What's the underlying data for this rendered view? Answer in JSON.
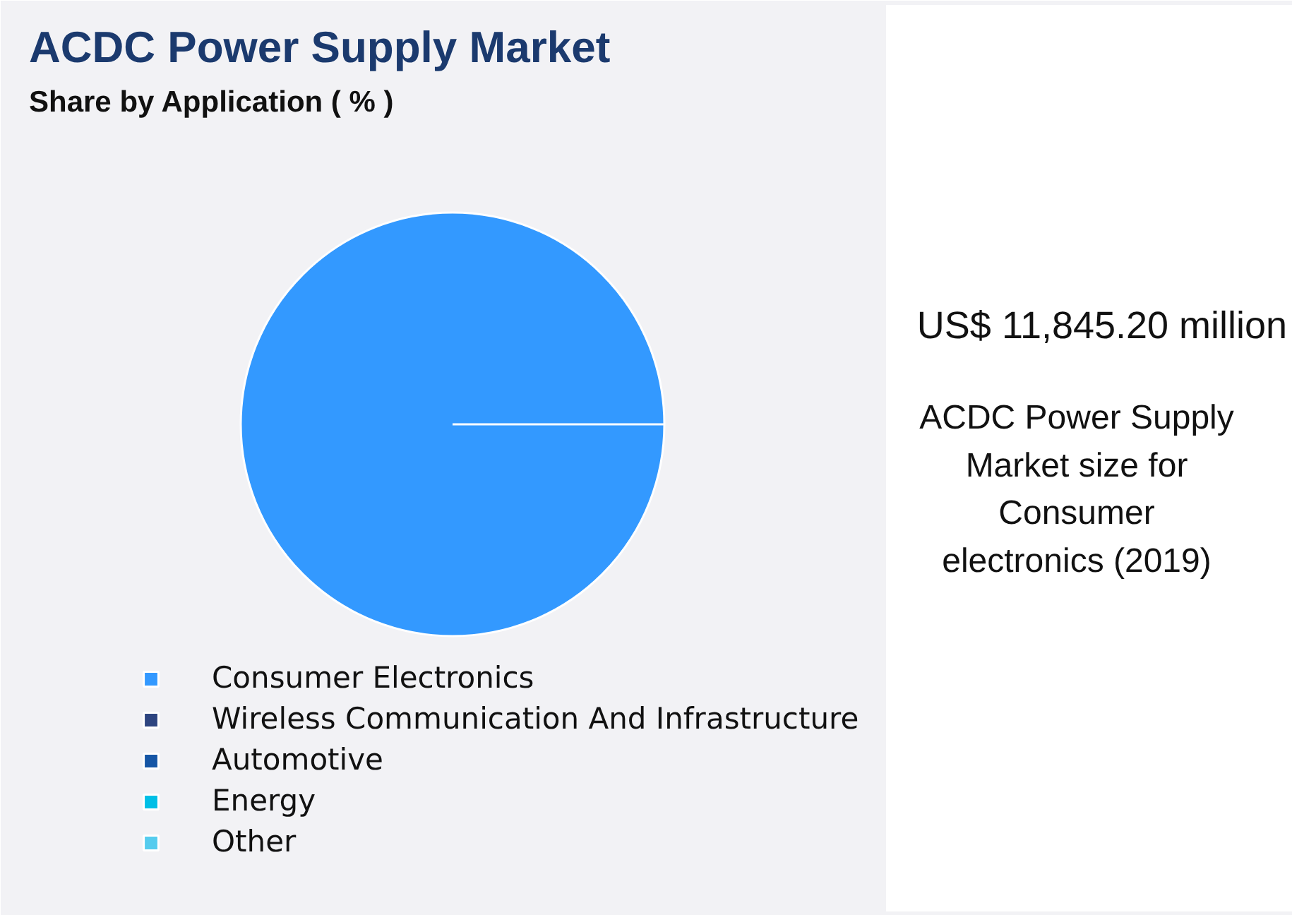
{
  "chart_data": {
    "type": "pie",
    "title": "ACDC Power Supply Market",
    "subtitle": "Share by Application ( % )",
    "categories": [
      "Consumer Electronics",
      "Wireless Communication And Infrastructure",
      "Automotive",
      "Energy",
      "Other"
    ],
    "values": [
      100,
      0,
      0,
      0,
      0
    ],
    "colors": [
      "#3399ff",
      "#2e4580",
      "#1656a5",
      "#00bfe6",
      "#55ccee"
    ],
    "legend": "bottom",
    "annotations": [
      "US$ 11,845.20 million",
      "ACDC Power Supply Market size for Consumer electronics (2019)"
    ]
  }
}
